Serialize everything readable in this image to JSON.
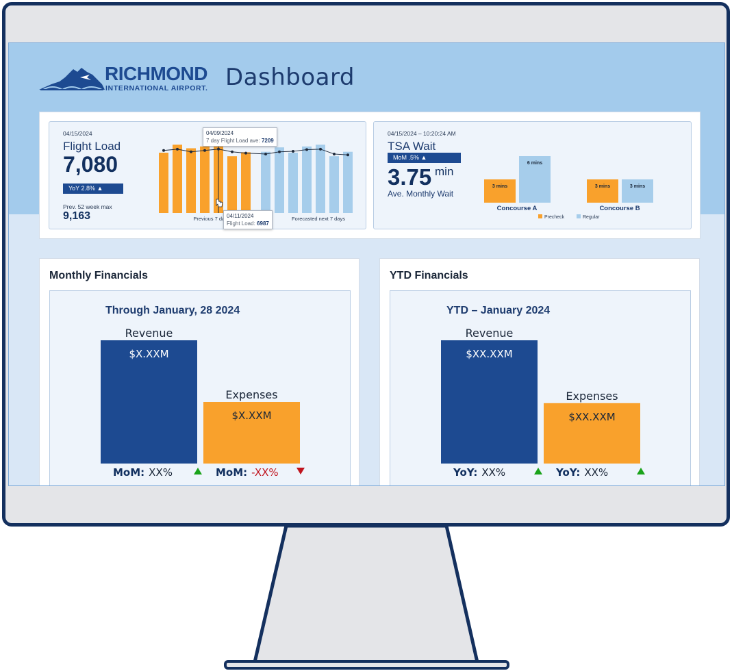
{
  "header": {
    "logo_name": "RICHMOND",
    "logo_sub": "INTERNATIONAL AIRPORT.",
    "title": "Dashboard"
  },
  "flight_load": {
    "date": "04/15/2024",
    "title": "Flight Load",
    "value": "7,080",
    "yoy_badge": "YoY 2.8% ▲",
    "prev_label": "Prev. 52 week max",
    "prev_value": "9,163",
    "tooltip_avg": {
      "date": "04/09/2024",
      "label": "7 day Flight Load ave:",
      "value": "7209"
    },
    "tooltip_point": {
      "date": "04/11/2024",
      "label": "Flight Load:",
      "value": "6987"
    }
  },
  "tsa_wait": {
    "datetime": "04/15/2024 – 10:20:24 AM",
    "title": "TSA Wait",
    "mom_badge": "MoM .5% ▲",
    "value": "3.75",
    "unit": "min",
    "subtitle": "Ave. Monthly Wait"
  },
  "monthly_financials": {
    "title": "Monthly Financials",
    "heading": "Through January, 28 2024"
  },
  "ytd_financials": {
    "title": "YTD Financials",
    "heading": "YTD – January 2024"
  },
  "colors": {
    "navy": "#1d4a91",
    "orange": "#f9a12c",
    "light_blue": "#a6cdeb",
    "up_green": "#1aa31a",
    "down_red": "#c0141e"
  },
  "chart_data": [
    {
      "type": "bar",
      "id": "flight-load",
      "groups": [
        {
          "label": "Previous 7 days",
          "values": [
            6800,
            7700,
            7300,
            7500,
            7900,
            6400,
            6850
          ]
        },
        {
          "label": "Forecasted next 7 days",
          "values": [
            6900,
            7400,
            6800,
            7500,
            7700,
            6400,
            6900
          ]
        }
      ],
      "line": {
        "name": "7 day Flight Load ave",
        "values": [
          7050,
          7200,
          6900,
          7050,
          7209,
          6900,
          6750,
          6650,
          6900,
          6950,
          7150,
          7200,
          6650,
          6550
        ]
      },
      "ylim": [
        0,
        8500
      ]
    },
    {
      "type": "bar",
      "id": "tsa-wait",
      "categories": [
        "Concourse A",
        "Concourse B"
      ],
      "series": [
        {
          "name": "Precheck",
          "values": [
            3,
            3
          ],
          "labels": [
            "3 mins",
            "3 mins"
          ]
        },
        {
          "name": "Regular",
          "values": [
            6,
            3
          ],
          "labels": [
            "6 mins",
            "3 mins"
          ]
        }
      ],
      "legend": "bottom",
      "ylim": [
        0,
        6
      ]
    },
    {
      "type": "bar",
      "id": "monthly-financials",
      "categories": [
        "Revenue",
        "Expenses"
      ],
      "relative_values": [
        1.0,
        0.5
      ],
      "value_labels": [
        "$X.XXM",
        "$X.XXM"
      ],
      "change_prefix": [
        "MoM:",
        "MoM:"
      ],
      "changes": [
        "XX%",
        "-XX%"
      ],
      "directions": [
        "up",
        "down"
      ]
    },
    {
      "type": "bar",
      "id": "ytd-financials",
      "categories": [
        "Revenue",
        "Expenses"
      ],
      "relative_values": [
        1.0,
        0.49
      ],
      "value_labels": [
        "$XX.XXM",
        "$XX.XXM"
      ],
      "change_prefix": [
        "YoY:",
        "YoY:"
      ],
      "changes": [
        "XX%",
        "XX%"
      ],
      "directions": [
        "up",
        "up"
      ]
    }
  ]
}
